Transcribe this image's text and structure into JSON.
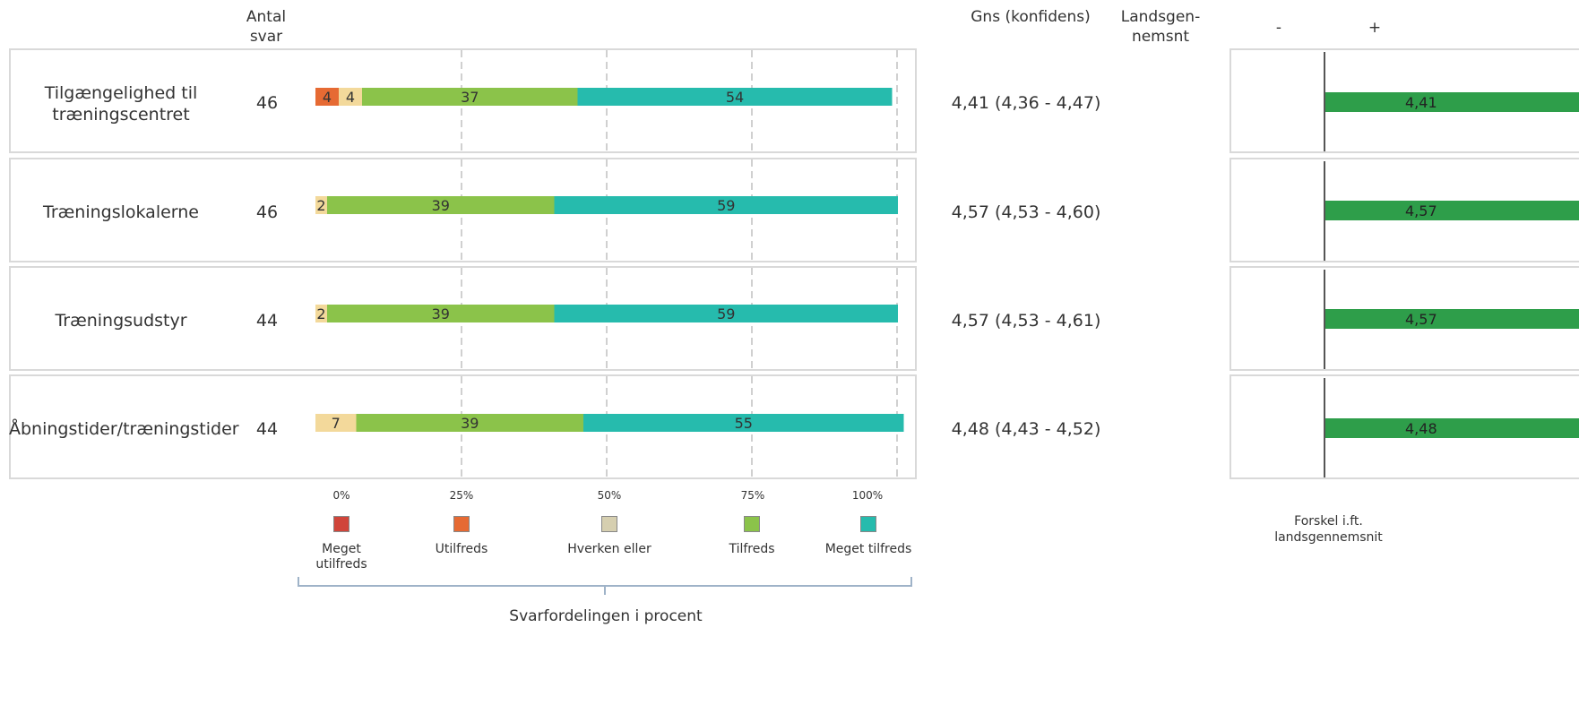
{
  "headers": {
    "antal": "Antal",
    "svar": "svar",
    "gns": "Gns  (konfidens)",
    "lands_1": "Landsgen-",
    "lands_2": "nemsnt",
    "minus": "-",
    "plus": "+"
  },
  "legend": {
    "items": [
      {
        "label_1": "Meget",
        "label_2": "utilfreds",
        "color": "#d0453a"
      },
      {
        "label_1": "Utilfreds",
        "label_2": "",
        "color": "#e66a33"
      },
      {
        "label_1": "Hverken eller",
        "label_2": "",
        "color": "#d6cfb0"
      },
      {
        "label_1": "Tilfreds",
        "label_2": "",
        "color": "#8bc34a"
      },
      {
        "label_1": "Meget tilfreds",
        "label_2": "",
        "color": "#26bbad"
      }
    ]
  },
  "axis_caption": "Svarfordelingen i procent",
  "diff_caption_1": "Forskel i.ft.",
  "diff_caption_2": "landsgennemsnit",
  "chart_data": {
    "type": "bar",
    "stacked": true,
    "orientation": "horizontal",
    "xlim": [
      0,
      100
    ],
    "x_ticks": [
      "0%",
      "25%",
      "50%",
      "75%",
      "100%"
    ],
    "grid": true,
    "categories": [
      "Tilgængelighed til træningscentret",
      "Træningslokalerne",
      "Træningsudstyr",
      "Åbningstider/træningstider"
    ],
    "category_lines": [
      [
        "Tilgængelighed til",
        "træningscentret"
      ],
      [
        "Træningslokalerne"
      ],
      [
        "Træningsudstyr"
      ],
      [
        "Åbningstider/træningstider"
      ]
    ],
    "n": [
      "46",
      "46",
      "44",
      "44"
    ],
    "means": [
      "4,41",
      "4,57",
      "4,57",
      "4,48"
    ],
    "mean_text": [
      "4,41 (4,36 - 4,47)",
      "4,57 (4,53 - 4,60)",
      "4,57 (4,53 - 4,61)",
      "4,48 (4,43 - 4,52)"
    ],
    "series": [
      {
        "name": "Utilfreds",
        "color": "#e66a33",
        "values": [
          4,
          0,
          0,
          0
        ]
      },
      {
        "name": "Hverken eller",
        "color": "#f3d99b",
        "values": [
          4,
          2,
          2,
          7
        ]
      },
      {
        "name": "Tilfreds",
        "color": "#8bc34a",
        "values": [
          37,
          39,
          39,
          39
        ]
      },
      {
        "name": "Meget tilfreds",
        "color": "#26bbad",
        "values": [
          54,
          59,
          59,
          55
        ]
      }
    ],
    "diff_bar_color": "#2e9e4a"
  }
}
